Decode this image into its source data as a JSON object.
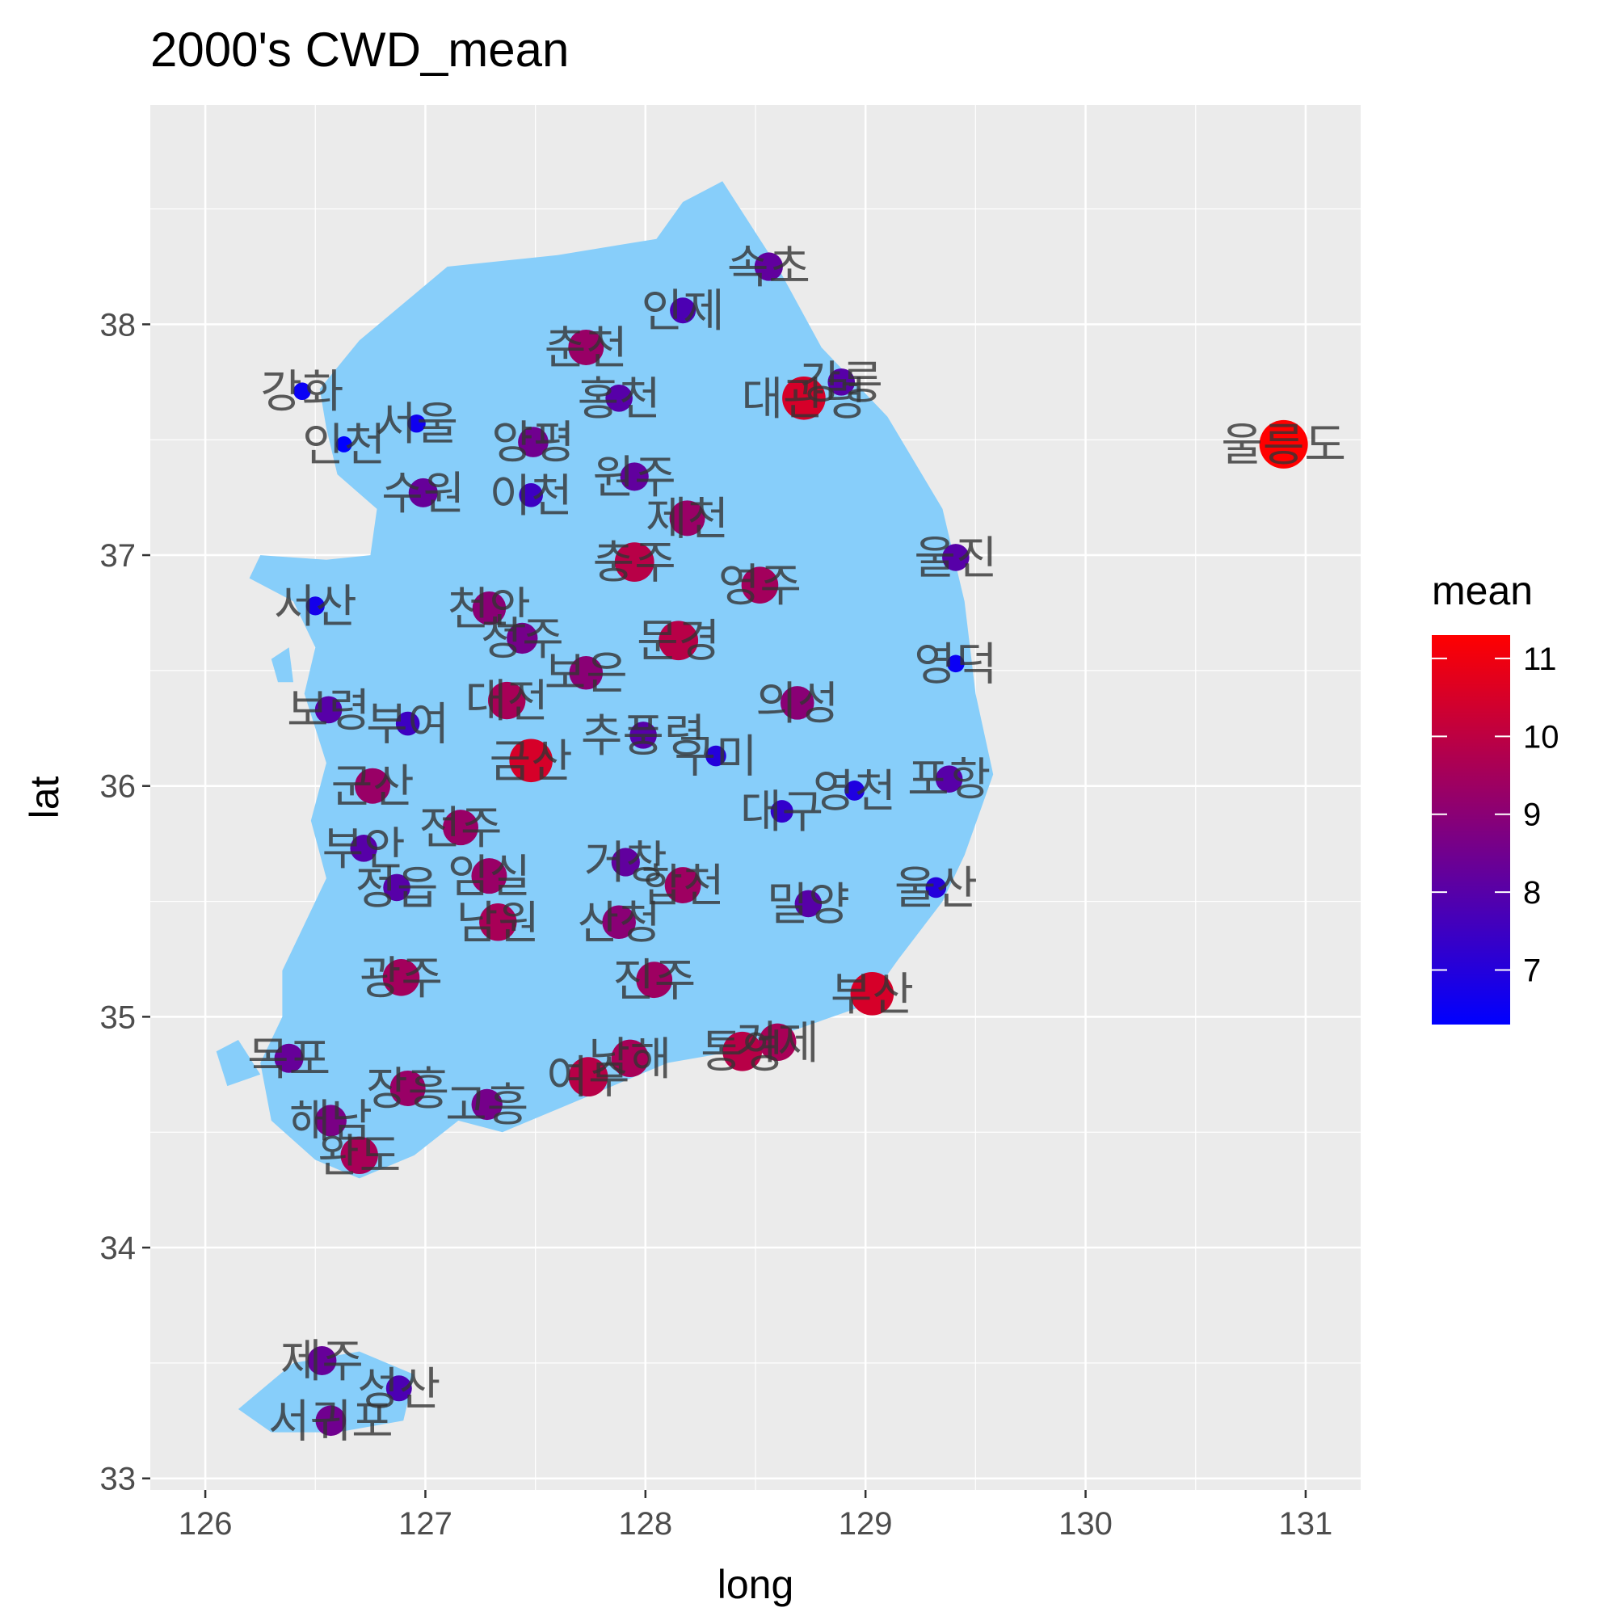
{
  "chart_data": {
    "type": "scatter",
    "title": "2000's CWD_mean",
    "xlabel": "long",
    "ylabel": "lat",
    "xlim": [
      125.75,
      131.25
    ],
    "ylim": [
      32.95,
      38.95
    ],
    "x_ticks": [
      126,
      127,
      128,
      129,
      130,
      131
    ],
    "y_ticks": [
      33,
      34,
      35,
      36,
      37,
      38
    ],
    "grid": true,
    "background_color": "#ebebeb",
    "land_color": "#87cefa",
    "legend": {
      "title": "mean",
      "placement": "right",
      "low_color": "#0000ff",
      "high_color": "#ff0000",
      "range": [
        6.3,
        11.3
      ],
      "ticks": [
        7,
        8,
        9,
        10,
        11
      ]
    },
    "points": [
      {
        "name": "속초",
        "x": 128.56,
        "y": 38.25,
        "mean": 8.2
      },
      {
        "name": "인제",
        "x": 128.17,
        "y": 38.06,
        "mean": 7.8
      },
      {
        "name": "춘천",
        "x": 127.73,
        "y": 37.9,
        "mean": 9.3
      },
      {
        "name": "홍천",
        "x": 127.88,
        "y": 37.68,
        "mean": 8.0
      },
      {
        "name": "강화",
        "x": 126.44,
        "y": 37.71,
        "mean": 6.5
      },
      {
        "name": "서울",
        "x": 126.96,
        "y": 37.57,
        "mean": 6.6
      },
      {
        "name": "인천",
        "x": 126.63,
        "y": 37.48,
        "mean": 6.3
      },
      {
        "name": "양평",
        "x": 127.49,
        "y": 37.49,
        "mean": 8.5
      },
      {
        "name": "원주",
        "x": 127.95,
        "y": 37.34,
        "mean": 8.2
      },
      {
        "name": "수원",
        "x": 126.99,
        "y": 37.27,
        "mean": 8.3
      },
      {
        "name": "이천",
        "x": 127.48,
        "y": 37.26,
        "mean": 7.5
      },
      {
        "name": "제천",
        "x": 128.19,
        "y": 37.16,
        "mean": 9.3
      },
      {
        "name": "대관령",
        "x": 128.72,
        "y": 37.68,
        "mean": 10.5
      },
      {
        "name": "강릉",
        "x": 128.89,
        "y": 37.75,
        "mean": 8.0
      },
      {
        "name": "울릉도",
        "x": 130.9,
        "y": 37.48,
        "mean": 11.3
      },
      {
        "name": "충주",
        "x": 127.95,
        "y": 36.97,
        "mean": 9.9
      },
      {
        "name": "영주",
        "x": 128.52,
        "y": 36.87,
        "mean": 9.5
      },
      {
        "name": "울진",
        "x": 129.41,
        "y": 36.99,
        "mean": 8.0
      },
      {
        "name": "서산",
        "x": 126.5,
        "y": 36.78,
        "mean": 6.7
      },
      {
        "name": "천안",
        "x": 127.29,
        "y": 36.77,
        "mean": 9.0
      },
      {
        "name": "청주",
        "x": 127.44,
        "y": 36.64,
        "mean": 8.6
      },
      {
        "name": "문경",
        "x": 128.15,
        "y": 36.63,
        "mean": 9.9
      },
      {
        "name": "영덕",
        "x": 129.41,
        "y": 36.53,
        "mean": 6.5
      },
      {
        "name": "보은",
        "x": 127.73,
        "y": 36.49,
        "mean": 9.0
      },
      {
        "name": "대전",
        "x": 127.37,
        "y": 36.37,
        "mean": 9.6
      },
      {
        "name": "보령",
        "x": 126.56,
        "y": 36.33,
        "mean": 8.0
      },
      {
        "name": "부여",
        "x": 126.92,
        "y": 36.27,
        "mean": 7.5
      },
      {
        "name": "추풍령",
        "x": 127.99,
        "y": 36.22,
        "mean": 8.0
      },
      {
        "name": "의성",
        "x": 128.69,
        "y": 36.36,
        "mean": 9.0
      },
      {
        "name": "구미",
        "x": 128.32,
        "y": 36.13,
        "mean": 7.0
      },
      {
        "name": "금산",
        "x": 127.48,
        "y": 36.11,
        "mean": 10.5
      },
      {
        "name": "영천",
        "x": 128.95,
        "y": 35.98,
        "mean": 6.9
      },
      {
        "name": "포항",
        "x": 129.38,
        "y": 36.03,
        "mean": 8.0
      },
      {
        "name": "군산",
        "x": 126.76,
        "y": 36.0,
        "mean": 9.3
      },
      {
        "name": "대구",
        "x": 128.62,
        "y": 35.89,
        "mean": 7.3
      },
      {
        "name": "전주",
        "x": 127.16,
        "y": 35.82,
        "mean": 9.3
      },
      {
        "name": "부안",
        "x": 126.72,
        "y": 35.73,
        "mean": 8.0
      },
      {
        "name": "임실",
        "x": 127.29,
        "y": 35.61,
        "mean": 9.3
      },
      {
        "name": "정읍",
        "x": 126.87,
        "y": 35.56,
        "mean": 8.0
      },
      {
        "name": "거창",
        "x": 127.91,
        "y": 35.67,
        "mean": 8.2
      },
      {
        "name": "합천",
        "x": 128.17,
        "y": 35.57,
        "mean": 9.4
      },
      {
        "name": "밀양",
        "x": 128.74,
        "y": 35.49,
        "mean": 8.0
      },
      {
        "name": "울산",
        "x": 129.32,
        "y": 35.56,
        "mean": 7.0
      },
      {
        "name": "남원",
        "x": 127.33,
        "y": 35.41,
        "mean": 9.6
      },
      {
        "name": "산청",
        "x": 127.88,
        "y": 35.41,
        "mean": 9.0
      },
      {
        "name": "광주",
        "x": 126.89,
        "y": 35.17,
        "mean": 9.5
      },
      {
        "name": "진주",
        "x": 128.04,
        "y": 35.16,
        "mean": 9.4
      },
      {
        "name": "부산",
        "x": 129.03,
        "y": 35.1,
        "mean": 10.5
      },
      {
        "name": "목포",
        "x": 126.38,
        "y": 34.82,
        "mean": 8.3
      },
      {
        "name": "여수",
        "x": 127.74,
        "y": 34.74,
        "mean": 9.9
      },
      {
        "name": "남해",
        "x": 127.93,
        "y": 34.82,
        "mean": 9.6
      },
      {
        "name": "통영",
        "x": 128.44,
        "y": 34.85,
        "mean": 9.9
      },
      {
        "name": "거제",
        "x": 128.6,
        "y": 34.89,
        "mean": 9.6
      },
      {
        "name": "장흥",
        "x": 126.92,
        "y": 34.69,
        "mean": 9.3
      },
      {
        "name": "고흥",
        "x": 127.28,
        "y": 34.62,
        "mean": 8.6
      },
      {
        "name": "해남",
        "x": 126.57,
        "y": 34.55,
        "mean": 8.7
      },
      {
        "name": "완도",
        "x": 126.7,
        "y": 34.4,
        "mean": 9.6
      },
      {
        "name": "제주",
        "x": 126.53,
        "y": 33.51,
        "mean": 8.3
      },
      {
        "name": "성산",
        "x": 126.88,
        "y": 33.39,
        "mean": 7.8
      },
      {
        "name": "서귀포",
        "x": 126.57,
        "y": 33.25,
        "mean": 8.5
      }
    ]
  }
}
